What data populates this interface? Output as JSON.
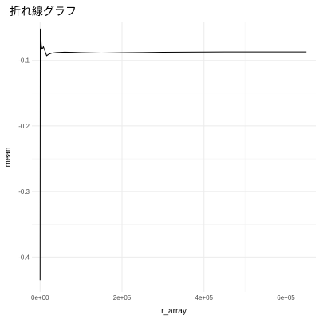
{
  "chart_data": {
    "type": "line",
    "title": "折れ線グラフ",
    "xlabel": "r_array",
    "ylabel": "mean",
    "xlim": [
      -20000,
      673000
    ],
    "ylim": [
      -0.453,
      -0.042
    ],
    "grid": true,
    "legend": "none",
    "x_ticks": [
      {
        "value": 0,
        "label": "0e+00"
      },
      {
        "value": 200000,
        "label": "2e+05"
      },
      {
        "value": 400000,
        "label": "4e+05"
      },
      {
        "value": 600000,
        "label": "6e+05"
      }
    ],
    "y_ticks": [
      {
        "value": -0.1,
        "label": "-0.1"
      },
      {
        "value": -0.2,
        "label": "-0.2"
      },
      {
        "value": -0.3,
        "label": "-0.3"
      },
      {
        "value": -0.4,
        "label": "-0.4"
      }
    ],
    "series": [
      {
        "color": "#000000",
        "x": [
          0,
          500,
          1000,
          2000,
          3000,
          5000,
          8000,
          12000,
          16000,
          20000,
          28000,
          40000,
          60000,
          80000,
          100000,
          150000,
          200000,
          250000,
          300000,
          350000,
          400000,
          450000,
          500000,
          550000,
          600000,
          650000
        ],
        "y": [
          -0.435,
          -0.052,
          -0.058,
          -0.066,
          -0.078,
          -0.083,
          -0.079,
          -0.086,
          -0.093,
          -0.091,
          -0.089,
          -0.088,
          -0.0875,
          -0.0878,
          -0.0882,
          -0.0888,
          -0.0883,
          -0.088,
          -0.0876,
          -0.0874,
          -0.0873,
          -0.0872,
          -0.0872,
          -0.0871,
          -0.0871,
          -0.0871
        ]
      }
    ]
  }
}
